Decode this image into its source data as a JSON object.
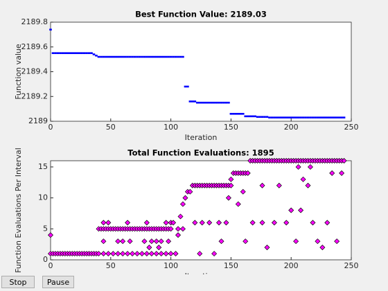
{
  "chart_data": [
    {
      "type": "scatter",
      "title": "Best Function Value: 2189.03",
      "xlabel": "Iteration",
      "ylabel": "Function value",
      "marker": "point",
      "color": "#0000ff",
      "x": [
        0,
        2,
        4,
        6,
        8,
        10,
        12,
        14,
        16,
        18,
        20,
        22,
        24,
        26,
        28,
        30,
        32,
        34,
        36,
        38,
        40,
        42,
        44,
        46,
        48,
        50,
        52,
        54,
        56,
        58,
        60,
        62,
        64,
        66,
        68,
        70,
        72,
        74,
        76,
        78,
        80,
        82,
        84,
        86,
        88,
        90,
        92,
        94,
        96,
        98,
        100,
        102,
        104,
        106,
        108,
        110,
        112,
        114,
        116,
        118,
        120,
        122,
        124,
        126,
        128,
        130,
        132,
        134,
        136,
        138,
        140,
        142,
        144,
        146,
        148,
        150,
        152,
        154,
        156,
        158,
        160,
        162,
        164,
        166,
        168,
        170,
        172,
        174,
        176,
        178,
        180,
        182,
        184,
        186,
        188,
        190,
        192,
        194,
        196,
        198,
        200,
        202,
        204,
        206,
        208,
        210,
        212,
        214,
        216,
        218,
        220,
        222,
        224,
        226,
        228,
        230,
        232,
        234,
        236,
        238,
        240,
        242,
        244
      ],
      "values": [
        2189.74,
        2189.55,
        2189.55,
        2189.55,
        2189.55,
        2189.55,
        2189.55,
        2189.55,
        2189.55,
        2189.55,
        2189.55,
        2189.55,
        2189.55,
        2189.55,
        2189.55,
        2189.55,
        2189.55,
        2189.55,
        2189.54,
        2189.53,
        2189.52,
        2189.52,
        2189.52,
        2189.52,
        2189.52,
        2189.52,
        2189.52,
        2189.52,
        2189.52,
        2189.52,
        2189.52,
        2189.52,
        2189.52,
        2189.52,
        2189.52,
        2189.52,
        2189.52,
        2189.52,
        2189.52,
        2189.52,
        2189.52,
        2189.52,
        2189.52,
        2189.52,
        2189.52,
        2189.52,
        2189.52,
        2189.52,
        2189.52,
        2189.52,
        2189.52,
        2189.52,
        2189.52,
        2189.52,
        2189.52,
        2189.52,
        2189.28,
        2189.28,
        2189.16,
        2189.16,
        2189.16,
        2189.15,
        2189.15,
        2189.15,
        2189.15,
        2189.15,
        2189.15,
        2189.15,
        2189.15,
        2189.15,
        2189.15,
        2189.15,
        2189.15,
        2189.15,
        2189.15,
        2189.06,
        2189.06,
        2189.06,
        2189.06,
        2189.06,
        2189.06,
        2189.04,
        2189.04,
        2189.04,
        2189.04,
        2189.04,
        2189.035,
        2189.035,
        2189.035,
        2189.035,
        2189.035,
        2189.03,
        2189.03,
        2189.03,
        2189.03,
        2189.03,
        2189.03,
        2189.03,
        2189.03,
        2189.03,
        2189.03,
        2189.03,
        2189.03,
        2189.03,
        2189.03,
        2189.03,
        2189.03,
        2189.03,
        2189.03,
        2189.03,
        2189.03,
        2189.03,
        2189.03,
        2189.03,
        2189.03,
        2189.03,
        2189.03,
        2189.03,
        2189.03,
        2189.03,
        2189.03,
        2189.03,
        2189.03
      ],
      "xlim": [
        0,
        250
      ],
      "xticks": [
        0,
        50,
        100,
        150,
        200,
        250
      ],
      "ylim": [
        2189,
        2189.8
      ],
      "yticks": [
        2189,
        2189.2,
        2189.4,
        2189.6,
        2189.8
      ]
    },
    {
      "type": "scatter",
      "title": "Total Function Evaluations: 1895",
      "xlabel": "Iteration",
      "ylabel": "Function Evaluations Per Interval",
      "marker": "diamond",
      "color": "#ff00ff",
      "edgecolor": "#000000",
      "x": [
        0,
        2,
        4,
        6,
        8,
        10,
        12,
        14,
        16,
        18,
        20,
        22,
        24,
        26,
        28,
        30,
        32,
        34,
        36,
        38,
        0,
        40,
        42,
        44,
        46,
        48,
        50,
        52,
        54,
        56,
        58,
        60,
        62,
        64,
        66,
        68,
        70,
        72,
        74,
        76,
        78,
        80,
        82,
        84,
        86,
        88,
        90,
        92,
        94,
        96,
        98,
        100,
        40,
        44,
        48,
        52,
        56,
        60,
        64,
        68,
        72,
        76,
        80,
        84,
        88,
        92,
        96,
        100,
        44,
        56,
        60,
        66,
        78,
        84,
        88,
        92,
        98,
        44,
        48,
        64,
        80,
        96,
        100,
        82,
        90,
        102,
        104,
        106,
        108,
        110,
        112,
        114,
        116,
        106,
        110,
        118,
        120,
        122,
        124,
        126,
        128,
        130,
        132,
        134,
        136,
        138,
        140,
        142,
        144,
        146,
        148,
        150,
        120,
        126,
        132,
        140,
        146,
        124,
        136,
        142,
        148,
        150,
        152,
        154,
        156,
        158,
        160,
        162,
        164,
        156,
        160,
        162,
        168,
        166,
        168,
        170,
        172,
        174,
        176,
        178,
        180,
        182,
        184,
        186,
        188,
        190,
        192,
        194,
        196,
        198,
        200,
        202,
        204,
        206,
        208,
        210,
        212,
        214,
        216,
        218,
        220,
        222,
        224,
        226,
        228,
        230,
        232,
        234,
        236,
        238,
        240,
        242,
        244,
        176,
        180,
        186,
        190,
        196,
        200,
        204,
        208,
        210,
        214,
        218,
        222,
        226,
        230,
        234,
        238,
        242,
        176,
        206,
        216
      ],
      "values": [
        1,
        1,
        1,
        1,
        1,
        1,
        1,
        1,
        1,
        1,
        1,
        1,
        1,
        1,
        1,
        1,
        1,
        1,
        1,
        1,
        4,
        5,
        5,
        5,
        5,
        5,
        5,
        5,
        5,
        5,
        5,
        5,
        5,
        5,
        5,
        5,
        5,
        5,
        5,
        5,
        5,
        5,
        5,
        5,
        5,
        5,
        5,
        5,
        5,
        5,
        5,
        5,
        1,
        1,
        1,
        1,
        1,
        1,
        1,
        1,
        1,
        1,
        1,
        1,
        1,
        1,
        1,
        1,
        3,
        3,
        3,
        3,
        3,
        3,
        3,
        3,
        3,
        6,
        6,
        6,
        6,
        6,
        6,
        2,
        2,
        6,
        1,
        4,
        7,
        9,
        10,
        11,
        11,
        5,
        5,
        12,
        12,
        12,
        12,
        12,
        12,
        12,
        12,
        12,
        12,
        12,
        12,
        12,
        12,
        12,
        12,
        12,
        6,
        6,
        6,
        6,
        6,
        1,
        1,
        3,
        10,
        13,
        14,
        14,
        14,
        14,
        14,
        14,
        14,
        9,
        11,
        3,
        6,
        16,
        16,
        16,
        16,
        16,
        16,
        16,
        16,
        16,
        16,
        16,
        16,
        16,
        16,
        16,
        16,
        16,
        16,
        16,
        16,
        16,
        16,
        16,
        16,
        16,
        16,
        16,
        16,
        16,
        16,
        16,
        16,
        16,
        16,
        16,
        16,
        16,
        16,
        16,
        16,
        6,
        2,
        6,
        12,
        6,
        8,
        3,
        8,
        13,
        12,
        6,
        3,
        2,
        6,
        14,
        3,
        14,
        12,
        15,
        15
      ],
      "xlim": [
        0,
        250
      ],
      "xticks": [
        0,
        50,
        100,
        150,
        200,
        250
      ],
      "ylim": [
        0,
        16
      ],
      "yticks": [
        0,
        5,
        10,
        15
      ]
    }
  ],
  "buttons": [
    "Stop",
    "Pause"
  ]
}
